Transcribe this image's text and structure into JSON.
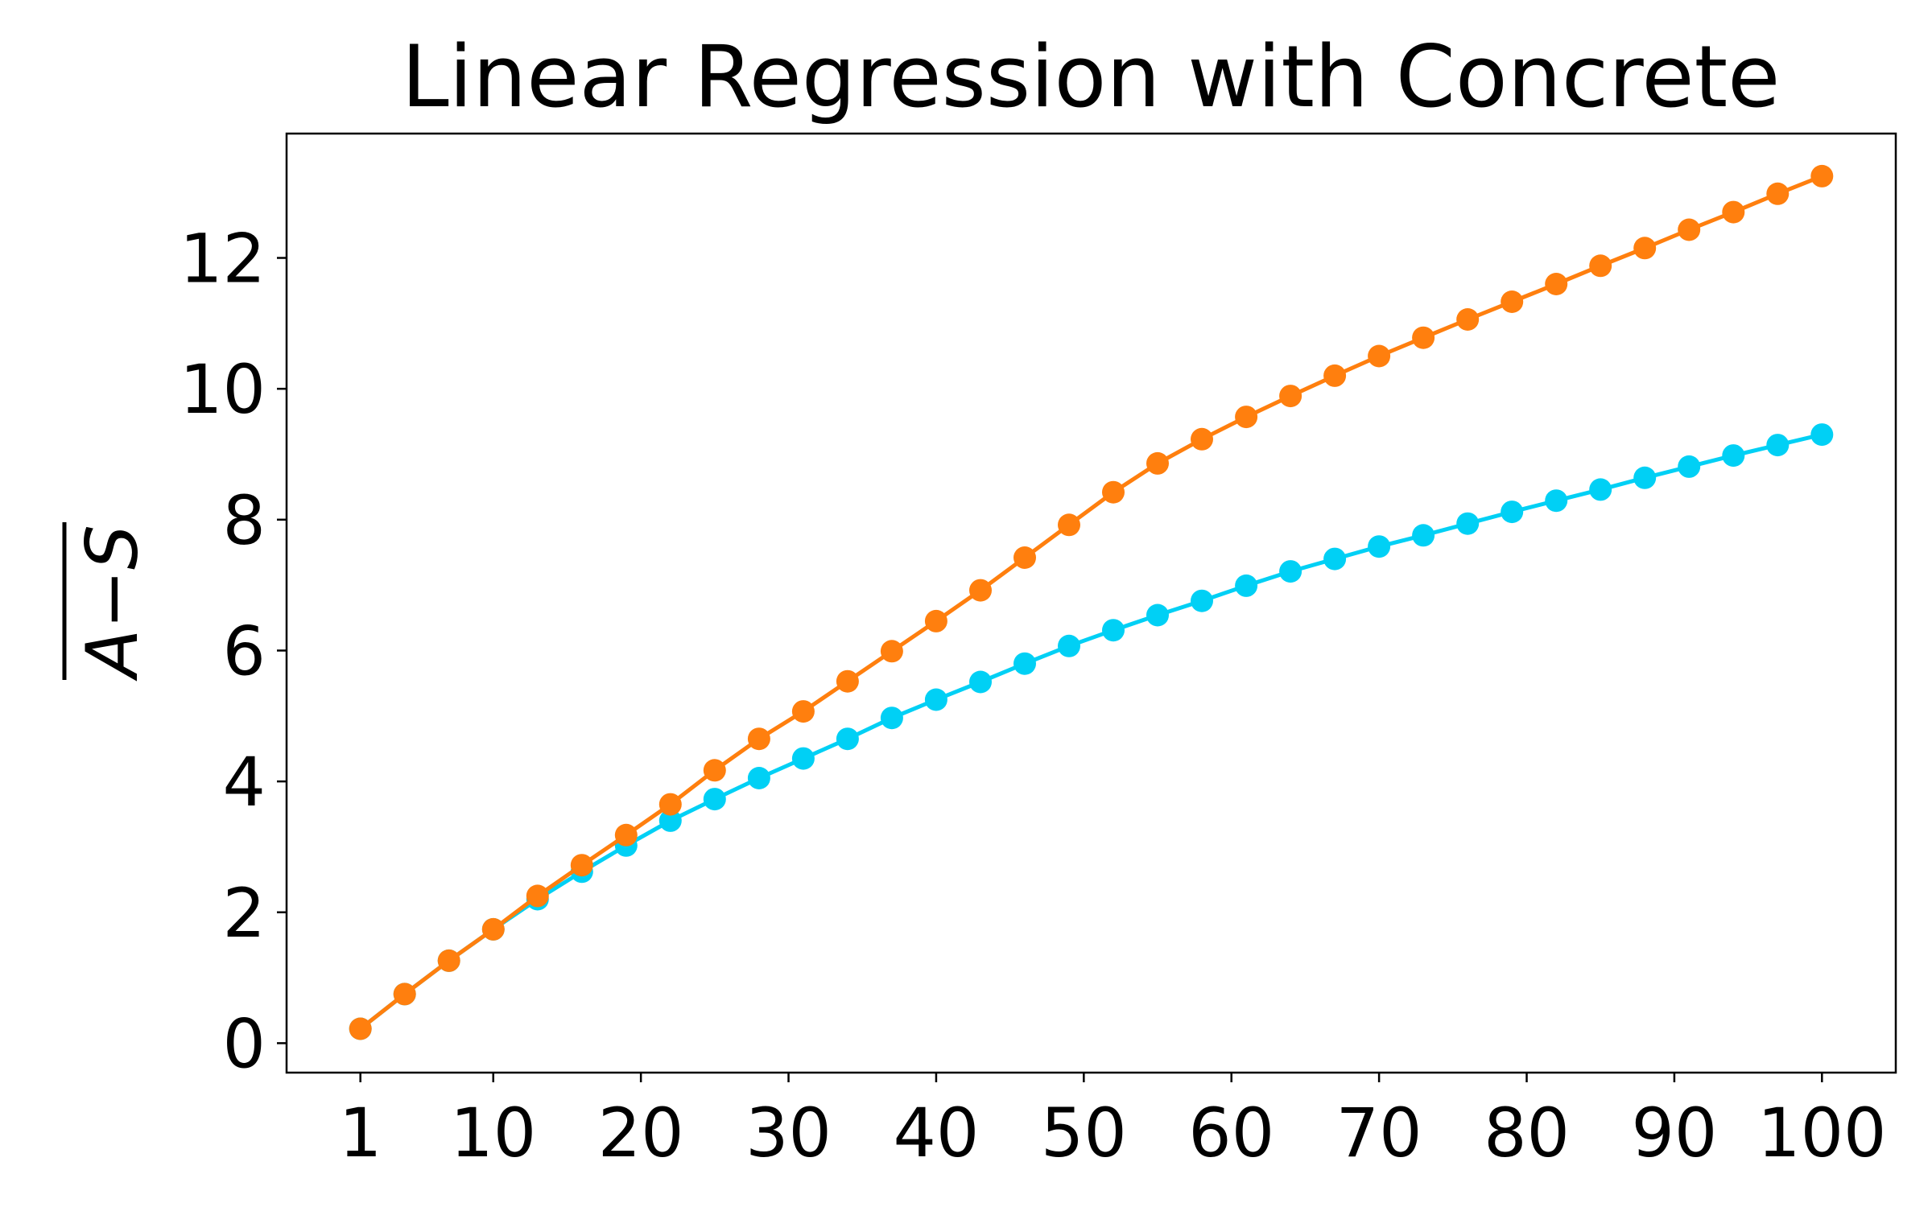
{
  "chart_data": {
    "type": "line",
    "title": "Linear Regression with Concrete",
    "xlabel": "",
    "ylabel": "A−S",
    "xlim": [
      -4,
      105
    ],
    "ylim": [
      -0.45,
      13.9
    ],
    "x_ticks": [
      1,
      10,
      20,
      30,
      40,
      50,
      60,
      70,
      80,
      90,
      100
    ],
    "y_ticks": [
      0,
      2,
      4,
      6,
      8,
      10,
      12
    ],
    "grid": false,
    "legend": "none",
    "x": [
      1,
      4,
      7,
      10,
      13,
      16,
      19,
      22,
      25,
      28,
      31,
      34,
      37,
      40,
      43,
      46,
      49,
      52,
      55,
      58,
      61,
      64,
      67,
      70,
      73,
      76,
      79,
      82,
      85,
      88,
      91,
      94,
      97,
      100
    ],
    "series": [
      {
        "color": "#00d0f5",
        "values": [
          0.22,
          0.75,
          1.26,
          1.74,
          2.2,
          2.62,
          3.02,
          3.4,
          3.73,
          4.05,
          4.35,
          4.65,
          4.97,
          5.25,
          5.52,
          5.8,
          6.07,
          6.31,
          6.54,
          6.76,
          6.99,
          7.21,
          7.4,
          7.59,
          7.76,
          7.94,
          8.12,
          8.29,
          8.46,
          8.64,
          8.81,
          8.98,
          9.14,
          9.3
        ]
      },
      {
        "color": "#ff7f0e",
        "values": [
          0.22,
          0.75,
          1.26,
          1.74,
          2.25,
          2.72,
          3.18,
          3.65,
          4.17,
          4.65,
          5.07,
          5.53,
          5.99,
          6.45,
          6.92,
          7.42,
          7.92,
          8.42,
          8.86,
          9.23,
          9.57,
          9.89,
          10.2,
          10.5,
          10.78,
          11.06,
          11.33,
          11.6,
          11.88,
          12.15,
          12.43,
          12.7,
          12.98,
          13.25
        ]
      }
    ]
  }
}
